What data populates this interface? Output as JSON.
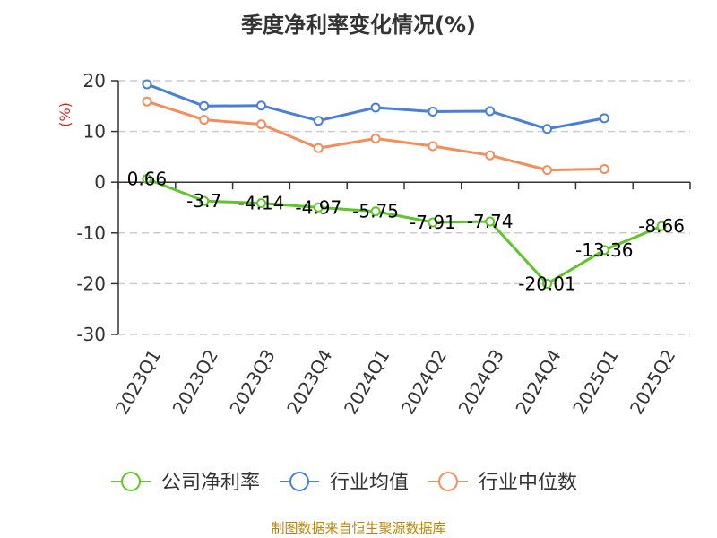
{
  "chart_data": {
    "type": "line",
    "title": "季度净利率变化情况(%)",
    "ylabel": "(%)",
    "categories": [
      "2023Q1",
      "2023Q2",
      "2023Q3",
      "2023Q4",
      "2024Q1",
      "2024Q2",
      "2024Q3",
      "2024Q4",
      "2025Q1",
      "2025Q2"
    ],
    "ylim": [
      -30,
      20
    ],
    "yticks": [
      20,
      10,
      0,
      -10,
      -20,
      -30
    ],
    "grid": true,
    "legend_position": "bottom",
    "series": [
      {
        "name": "公司净利率",
        "color": "#5ec52b",
        "values": [
          0.66,
          -3.7,
          -4.14,
          -4.97,
          -5.75,
          -7.91,
          -7.74,
          -20.01,
          -13.36,
          -8.66
        ],
        "labels": [
          "0.66",
          "-3.7",
          "-4.14",
          "-4.97",
          "-5.75",
          "-7.91",
          "-7.74",
          "-20.01",
          "-13.36",
          "-8.66"
        ]
      },
      {
        "name": "行业均值",
        "color": "#4a7fd8",
        "values": [
          19.3,
          15.0,
          15.1,
          12.1,
          14.7,
          13.9,
          14.0,
          10.5,
          12.6,
          null
        ]
      },
      {
        "name": "行业中位数",
        "color": "#f28e5c",
        "values": [
          15.9,
          12.3,
          11.4,
          6.7,
          8.6,
          7.1,
          5.3,
          2.4,
          2.6,
          null
        ]
      }
    ]
  },
  "source": "制图数据来自恒生聚源数据库"
}
